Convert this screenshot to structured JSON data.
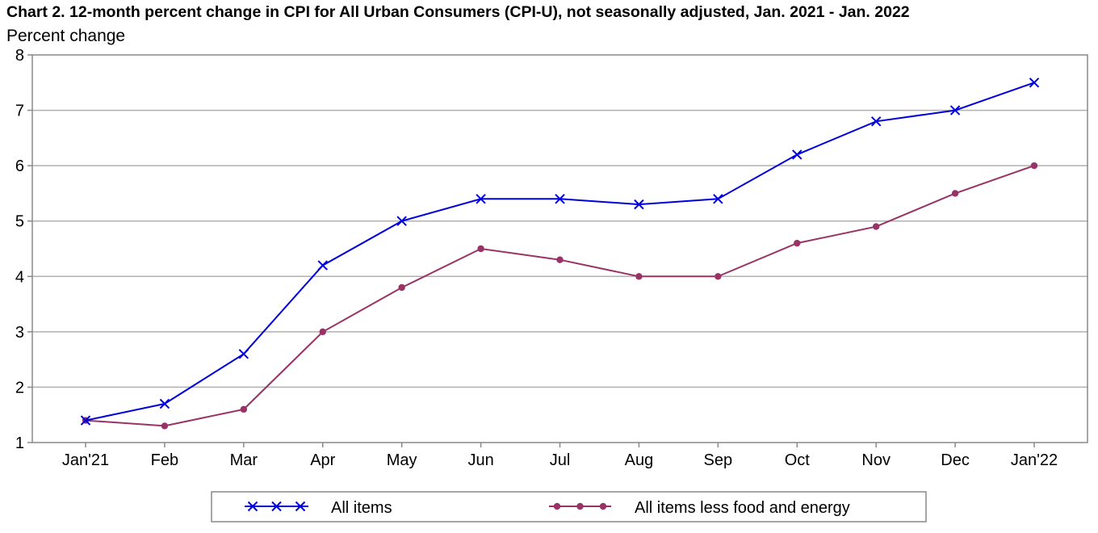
{
  "chart_data": {
    "type": "line",
    "title": "Chart 2. 12-month percent change in CPI for All Urban Consumers (CPI-U), not seasonally adjusted, Jan. 2021 - Jan. 2022",
    "ylabel": "Percent change",
    "xlabel": "",
    "ylim": [
      1,
      8
    ],
    "yticks": [
      1,
      2,
      3,
      4,
      5,
      6,
      7,
      8
    ],
    "grid": true,
    "legend_position": "bottom",
    "categories": [
      "Jan'21",
      "Feb",
      "Mar",
      "Apr",
      "May",
      "Jun",
      "Jul",
      "Aug",
      "Sep",
      "Oct",
      "Nov",
      "Dec",
      "Jan'22"
    ],
    "series": [
      {
        "name": "All items",
        "color": "#0000dd",
        "marker": "x",
        "values": [
          1.4,
          1.7,
          2.6,
          4.2,
          5.0,
          5.4,
          5.4,
          5.3,
          5.4,
          6.2,
          6.8,
          7.0,
          7.5
        ]
      },
      {
        "name": "All items less food and energy",
        "color": "#993366",
        "marker": "circle",
        "values": [
          1.4,
          1.3,
          1.6,
          3.0,
          3.8,
          4.5,
          4.3,
          4.0,
          4.0,
          4.6,
          4.9,
          5.5,
          6.0
        ]
      }
    ]
  }
}
